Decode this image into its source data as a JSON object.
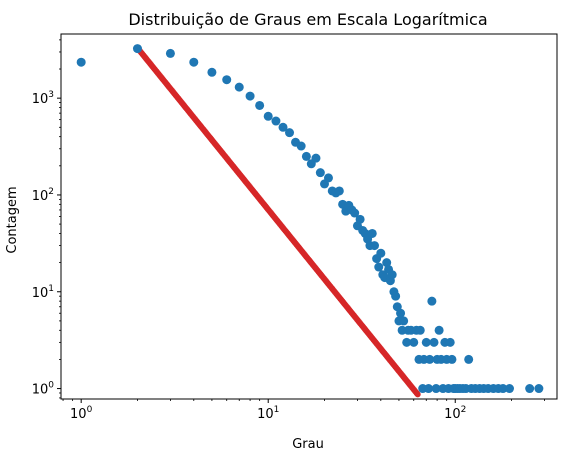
{
  "chart_data": {
    "type": "scatter",
    "title": "Distribuição de Graus em Escala Logarítmica",
    "xlabel": "Grau",
    "ylabel": "Contagem",
    "xscale": "log",
    "yscale": "log",
    "xlim": [
      0.78,
      350
    ],
    "ylim": [
      0.78,
      4600
    ],
    "grid": false,
    "legend": "none",
    "x_ticks": [
      {
        "value": 1,
        "label_base": "10",
        "label_exp": "0"
      },
      {
        "value": 10,
        "label_base": "10",
        "label_exp": "1"
      },
      {
        "value": 100,
        "label_base": "10",
        "label_exp": "2"
      }
    ],
    "y_ticks": [
      {
        "value": 1,
        "label_base": "10",
        "label_exp": "0"
      },
      {
        "value": 10,
        "label_base": "10",
        "label_exp": "1"
      },
      {
        "value": 100,
        "label_base": "10",
        "label_exp": "2"
      },
      {
        "value": 1000,
        "label_base": "10",
        "label_exp": "3"
      }
    ],
    "colors": {
      "points": "#1f77b4",
      "fit_line": "#d62728",
      "axes": "#000000"
    },
    "series": [
      {
        "kind": "scatter",
        "points": [
          [
            1,
            2350
          ],
          [
            2,
            3250
          ],
          [
            3,
            2900
          ],
          [
            4,
            2350
          ],
          [
            5,
            1850
          ],
          [
            6,
            1550
          ],
          [
            7,
            1300
          ],
          [
            8,
            1050
          ],
          [
            9,
            840
          ],
          [
            10,
            650
          ],
          [
            11,
            580
          ],
          [
            12,
            500
          ],
          [
            13,
            440
          ],
          [
            14,
            350
          ],
          [
            15,
            320
          ],
          [
            16,
            250
          ],
          [
            17,
            210
          ],
          [
            18,
            240
          ],
          [
            19,
            170
          ],
          [
            20,
            130
          ],
          [
            21,
            150
          ],
          [
            22,
            110
          ],
          [
            23,
            105
          ],
          [
            24,
            110
          ],
          [
            25,
            80
          ],
          [
            26,
            68
          ],
          [
            27,
            78
          ],
          [
            28,
            70
          ],
          [
            29,
            65
          ],
          [
            30,
            48
          ],
          [
            31,
            56
          ],
          [
            32,
            43
          ],
          [
            33,
            40
          ],
          [
            34,
            35
          ],
          [
            35,
            30
          ],
          [
            36,
            40
          ],
          [
            37,
            30
          ],
          [
            38,
            22
          ],
          [
            39,
            18
          ],
          [
            40,
            25
          ],
          [
            41,
            15
          ],
          [
            42,
            14
          ],
          [
            43,
            20
          ],
          [
            44,
            17
          ],
          [
            45,
            13
          ],
          [
            46,
            15
          ],
          [
            47,
            10
          ],
          [
            48,
            9
          ],
          [
            49,
            7
          ],
          [
            50,
            5
          ],
          [
            51,
            6
          ],
          [
            52,
            4
          ],
          [
            53,
            5
          ],
          [
            55,
            3
          ],
          [
            56,
            4
          ],
          [
            58,
            4
          ],
          [
            60,
            3
          ],
          [
            62,
            4
          ],
          [
            64,
            2
          ],
          [
            65,
            4
          ],
          [
            67,
            1
          ],
          [
            68,
            2
          ],
          [
            70,
            3
          ],
          [
            72,
            1
          ],
          [
            73,
            2
          ],
          [
            75,
            8
          ],
          [
            77,
            3
          ],
          [
            79,
            1
          ],
          [
            80,
            2
          ],
          [
            82,
            4
          ],
          [
            84,
            2
          ],
          [
            86,
            1
          ],
          [
            88,
            3
          ],
          [
            90,
            2
          ],
          [
            92,
            1
          ],
          [
            94,
            3
          ],
          [
            96,
            2
          ],
          [
            98,
            1
          ],
          [
            100,
            1
          ],
          [
            103,
            1
          ],
          [
            106,
            1
          ],
          [
            110,
            1
          ],
          [
            114,
            1
          ],
          [
            118,
            2
          ],
          [
            122,
            1
          ],
          [
            128,
            1
          ],
          [
            135,
            1
          ],
          [
            142,
            1
          ],
          [
            150,
            1
          ],
          [
            160,
            1
          ],
          [
            170,
            1
          ],
          [
            180,
            1
          ],
          [
            195,
            1
          ],
          [
            250,
            1
          ],
          [
            280,
            1
          ]
        ]
      },
      {
        "kind": "line",
        "style": "dense-markers",
        "points": [
          [
            2,
            3300
          ],
          [
            63,
            0.87
          ]
        ]
      }
    ]
  }
}
